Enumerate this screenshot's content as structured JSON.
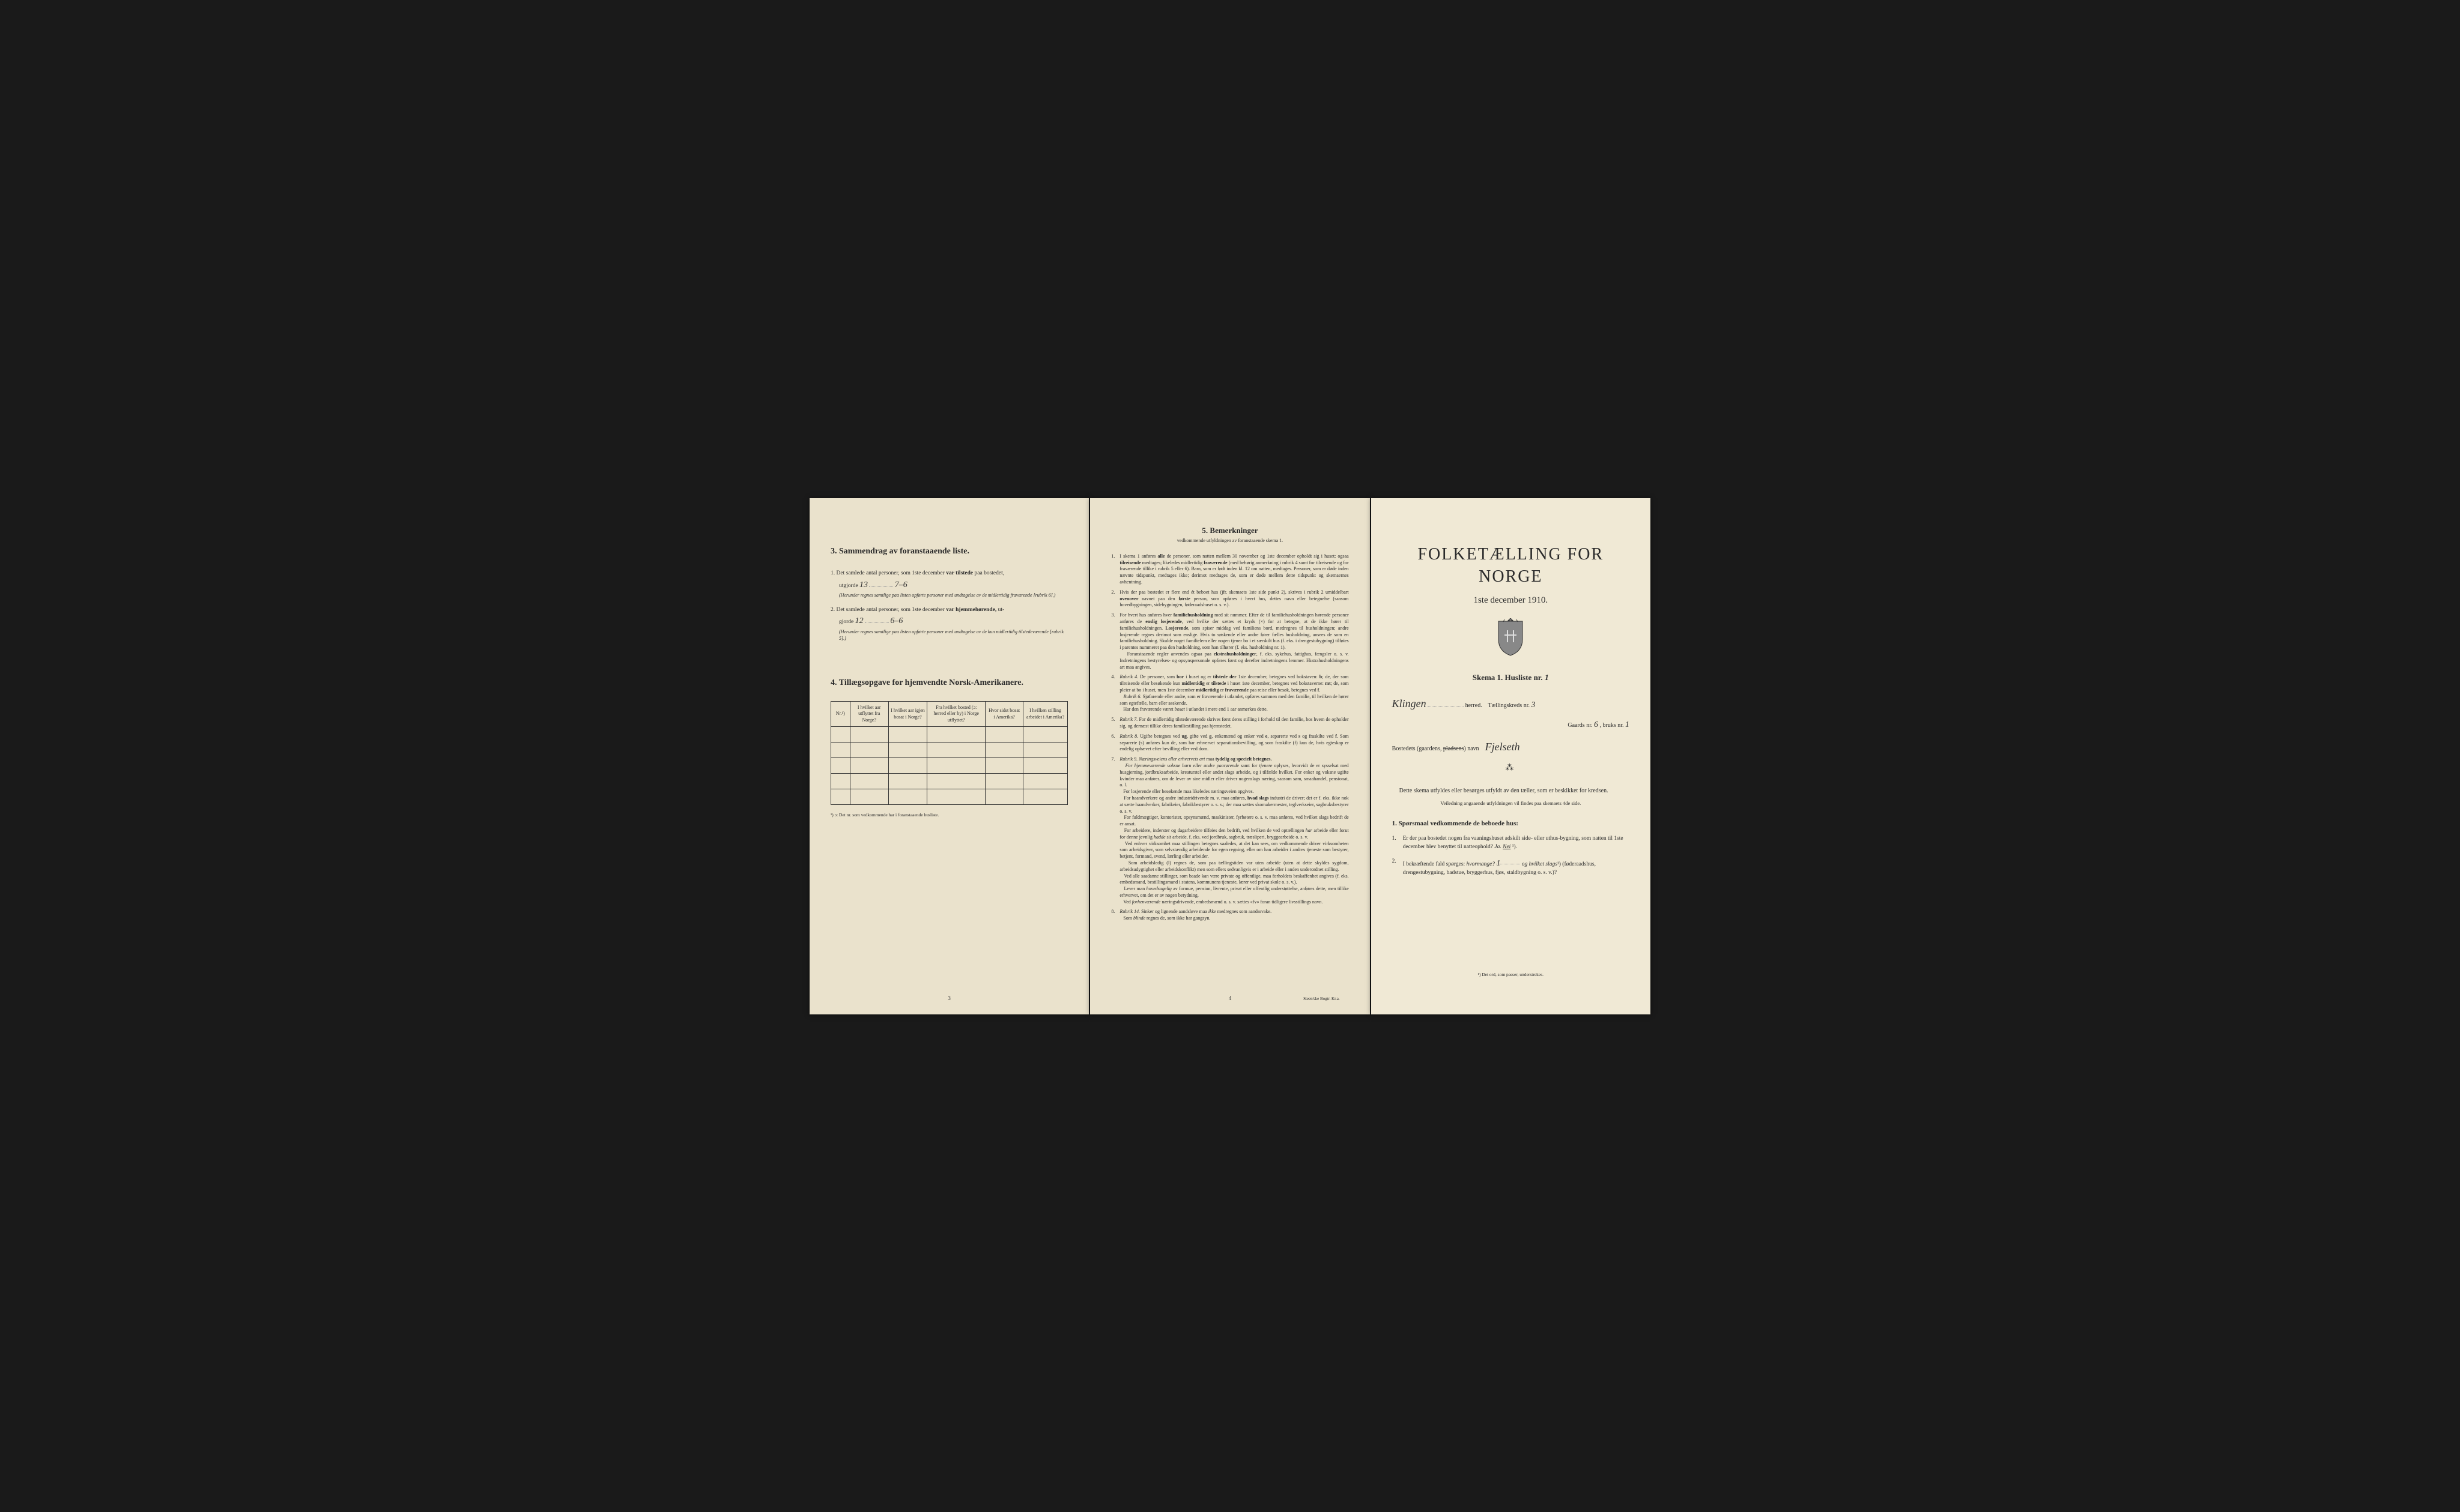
{
  "background_color": "#1a1a1a",
  "page_bg": "#ede5d0",
  "text_color": "#2a2a2a",
  "page1": {
    "section3": {
      "title": "3.  Sammendrag av foranstaaende liste.",
      "item1_prefix": "1.  Det samlede antal personer, som 1ste december",
      "item1_bold": "var tilstede",
      "item1_suffix": "paa bostedet,",
      "item1_utgjorde": "utgjorde",
      "item1_val1": "13",
      "item1_val2": "7–6",
      "item1_note": "(Herunder regnes samtlige paa listen opførte personer med undtagelse av de midlertidig fraværende [rubrik 6].)",
      "item2_prefix": "2.  Det samlede antal personer, som 1ste december",
      "item2_bold": "var hjemmehørende,",
      "item2_suffix": "ut-",
      "item2_gjorde": "gjorde",
      "item2_val1": "12",
      "item2_val2": "6–6",
      "item2_note": "(Herunder regnes samtlige paa listen opførte personer med undtagelse av de kun midlertidig tilstedeværende [rubrik 5].)"
    },
    "section4": {
      "title": "4.  Tillægsopgave for hjemvendte Norsk-Amerikanere.",
      "headers": [
        "Nr.¹)",
        "I hvilket aar utflyttet fra Norge?",
        "I hvilket aar igjen bosat i Norge?",
        "Fra hvilket bosted (ɔ: herred eller by) i Norge utflyttet?",
        "Hvor sidst bosat i Amerika?",
        "I hvilken stilling arbeidet i Amerika?"
      ],
      "rows": 5,
      "cols": 6,
      "footnote": "¹) ɔ: Det nr. som vedkommende har i foranstaaende husliste."
    },
    "page_num": "3"
  },
  "page2": {
    "title": "5.  Bemerkninger",
    "subtitle": "vedkommende utfyldningen av foranstaaende skema 1.",
    "remarks": [
      "I skema 1 anføres <strong>alle</strong> de personer, som natten mellem 30 november og 1ste december opholdt sig i huset; ogsaa <strong>tilreisende</strong> medtages; likeledes midlertidig <strong>fraværende</strong> (med behørig anmerkning i rubrik 4 samt for tilreisende og for fraværende tillike i rubrik 5 eller 6). Barn, som er født inden kl. 12 om natten, medtages. Personer, som er døde inden nævnte tidspunkt, medtages ikke; derimot medtages de, som er døde mellem dette tidspunkt og skemaernes avhentning.",
      "Hvis der paa bostedet er flere end ét beboet hus (jfr. skemaets 1ste side punkt 2), skrives i rubrik 2 umiddelbart <strong>ovenover</strong> navnet paa den <strong>første</strong> person, som opføres i hvert hus, dettes navn eller betegnelse (saasom hovedbygningen, sidebygningen, føderaadshuset o. s. v.).",
      "For hvert hus anføres hver <strong>familiehusholdning</strong> med sit nummer. Efter de til familiehusholdningen hørende personer anføres de <strong>enslig losjerende</strong>, ved hvilke der sættes et kryds (×) for at betegne, at de ikke hører til familiehusholdningen. <strong>Losjerende</strong>, som spiser middag ved familiens bord, medregnes til husholdningen; andre losjerende regnes derimot som enslige. Hvis to søskende eller andre fører fælles husholdning, ansees de som en familiehusholdning. Skulde noget familielem eller nogen tjener bo i et særskilt hus (f. eks. i drengestubygning) tilføies i parentes nummeret paa den husholdning, som han tilhører (f. eks. husholdning nr. 1).<br>&nbsp;&nbsp;&nbsp;Foranstaaende regler anvendes ogsaa paa <strong>ekstrahusholdninger</strong>, f. eks. sykehus, fattighus, fængsler o. s. v. Indretningens bestyrelses- og opsynspersonale opføres først og derefter indretningens lemmer. Ekstrahusholdningens art maa angives.",
      "<em>Rubrik 4.</em> De personer, som <strong>bor</strong> i huset og er <strong>tilstede der</strong> 1ste december, betegnes ved bokstaven: <strong>b</strong>; de, der som tilreisende eller besøkende kun <strong>midlertidig</strong> er <strong>tilstede</strong> i huset 1ste december, betegnes ved bokstaverne: <strong>mt</strong>; de, som pleier at bo i huset, men 1ste december <strong>midlertidig</strong> er <strong>fraværende</strong> paa reise eller besøk, betegnes ved <strong>f</strong>.<br>&nbsp;&nbsp;&nbsp;<em>Rubrik 6.</em> Sjøfarende eller andre, som er fraværende i utlandet, opføres sammen med den familie, til hvilken de hører som egtefælle, barn eller søskende.<br>&nbsp;&nbsp;&nbsp;Har den fraværende været <em>bosat</em> i utlandet i mere end 1 aar anmerkes dette.",
      "<em>Rubrik 7.</em> For de midlertidig tilstedeværende skrives først deres stilling i forhold til den familie, hos hvem de opholder sig, og dernæst tillike deres familiestilling paa hjemstedet.",
      "<em>Rubrik 8.</em> Ugifte betegnes ved <strong>ug</strong>, gifte ved <strong>g</strong>, enkemænd og enker ved <strong>e</strong>, separerte ved <strong>s</strong> og fraskilte ved <strong>f</strong>. Som separerte (s) anføres kun de, som har erhvervet separationsbevilling, og som fraskilte (f) kun de, hvis egteskap er endelig ophævet efter bevilling eller ved dom.",
      "<em>Rubrik 9.</em> <em>Næringsveiens eller erhvervets art</em> maa <strong>tydelig og specielt betegnes.</strong><br>&nbsp;&nbsp;&nbsp;<em>For hjemmeværende voksne barn eller andre paarørende</em> samt for <em>tjenere</em> oplyses, hvorvidt de er sysselsat med husgjerning, jordbruksarbeide, kreaturstel eller andet slags arbeide, og i tilfælde hvilket. For enker og voksne ugifte kvinder maa anføres, om de lever av sine midler eller driver nogenslags næring, saasom søm, smaahandel, pensionat, o. l.<br>&nbsp;&nbsp;&nbsp;For losjerende eller besøkende maa likeledes næringsveien opgives.<br>&nbsp;&nbsp;&nbsp;For haandverkere og andre industridrivende m. v. maa anføres, <strong>hvad slags</strong> industri de driver; det er f. eks. ikke nok at sætte haandverker, fabrikeier, fabrikbestyrer o. s. v.; der maa sættes skomakermester, teglverkseier, sagbruksbestyrer o. s. v.<br>&nbsp;&nbsp;&nbsp;For fuldmægtiger, kontorister, opsynsmænd, maskinister, fyrbøtere o. s. v. maa anføres, ved hvilket slags bedrift de er ansat.<br>&nbsp;&nbsp;&nbsp;For arbeidere, inderster og dagarbeidere tilføies den bedrift, ved hvilken de ved optællingen <em>har</em> arbeide eller forut for denne jevnlig <em>hadde</em> sit arbeide, f. eks. ved jordbruk, sagbruk, træsliperi, bryggearbeide o. s. v.<br>&nbsp;&nbsp;&nbsp;Ved enhver virksomhet maa stillingen betegnes saaledes, at det kan sees, om vedkommende driver virksomheten som arbeidsgiver, som selvstændig arbeidende for egen regning, eller om han arbeider i andres tjeneste som bestyrer, betjent, formand, svend, lærling eller arbeider.<br>&nbsp;&nbsp;&nbsp;Som arbeidsledig (l) regnes de, som paa tællingstiden var uten arbeide (uten at dette skyldes sygdom, arbeidsudygtighet eller arbeidskonflikt) men som ellers sedvanligvis er i arbeide eller i anden underordnet stilling.<br>&nbsp;&nbsp;&nbsp;Ved alle saadanne stillinger, som baade kan være private og offentlige, maa forholdets beskaffenhet angives (f. eks. embedsmand, bestillingsmand i statens, kommunens tjeneste, lærer ved privat skole o. s. v.).<br>&nbsp;&nbsp;&nbsp;Lever man <em>hovedsagelig</em> av formue, pension, livrente, privat eller offentlig understøttelse, anføres dette, men tillike erhvervet, om det er av nogen betydning.<br>&nbsp;&nbsp;&nbsp;Ved <em>forhenværende</em> næringsdrivende, embedsmænd o. s. v. sættes «fv» foran tidligere livsstillings navn.",
      "<em>Rubrik 14.</em> Sinker og lignende aandsløve maa <em>ikke</em> medregnes som aandssvake.<br>&nbsp;&nbsp;&nbsp;Som <em>blinde</em> regnes de, som ikke har gangsyn."
    ],
    "page_num": "4",
    "printer": "Steen'ske Bogtr. Kr.a."
  },
  "page3": {
    "main_title": "FOLKETÆLLING FOR NORGE",
    "main_subtitle": "1ste december 1910.",
    "skema": "Skema 1.  Husliste nr.",
    "skema_val": "1",
    "herred_val": "Klingen",
    "herred": "herred.",
    "tkreds": "Tællingskreds nr.",
    "tkreds_val": "3",
    "gaards": "Gaards nr.",
    "gaards_val": "6",
    "bruks": ", bruks nr.",
    "bruks_val": "1",
    "bosted": "Bostedets (gaardens, ",
    "bosted_struck": "pladsens",
    "bosted_suffix": ") navn",
    "bosted_val": "Fjelseth",
    "desc": "Dette skema utfyldes eller besørges utfyldt av den tæller, som er beskikket for kredsen.",
    "desc_sub": "Veiledning angaaende utfyldningen vil findes paa skemaets 4de side.",
    "q_header": "1. Spørsmaal vedkommende de beboede hus:",
    "q1": "Er der paa bostedet nogen fra vaaningshuset adskilt side- eller uthus-bygning, som natten til 1ste december blev benyttet til natteophold?  <em>Ja.  <u>Nei</u></em> ¹).",
    "q2": "I bekræftende fald spørges: <em>hvormange?</em> <span class='underline-blank handwritten'>1</span> <em>og hvilket slags</em>¹) (føderaadshus, drengestubygning, badstue, bryggerhus, fjøs, staldbygning o. s. v.)?",
    "footnote": "¹) Det ord, som passer, understrekes."
  }
}
